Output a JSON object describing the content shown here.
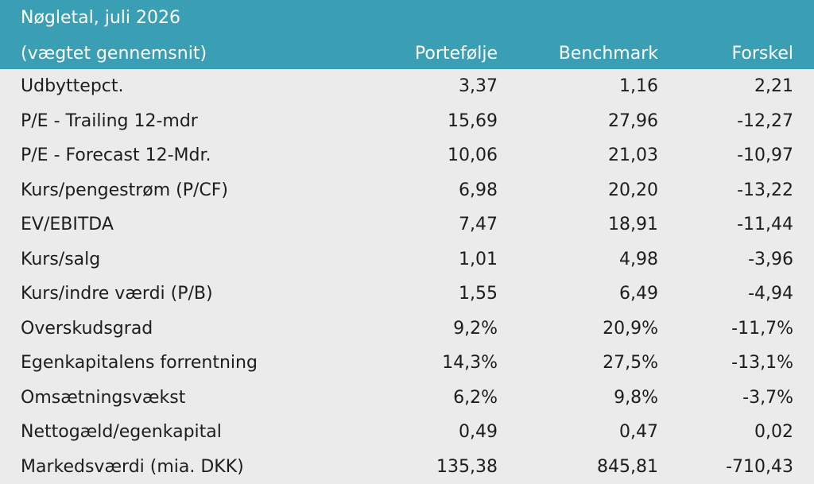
{
  "header": {
    "title": "Nøgletal, juli 2026",
    "subtitle": "(vægtet gennemsnit)",
    "columns": [
      "Portefølje",
      "Benchmark",
      "Forskel"
    ]
  },
  "rows": [
    {
      "label": "Udbyttepct.",
      "portefolje": "3,37",
      "benchmark": "1,16",
      "forskel": "2,21"
    },
    {
      "label": "P/E - Trailing 12-mdr",
      "portefolje": "15,69",
      "benchmark": "27,96",
      "forskel": "-12,27"
    },
    {
      "label": "P/E - Forecast 12-Mdr.",
      "portefolje": "10,06",
      "benchmark": "21,03",
      "forskel": "-10,97"
    },
    {
      "label": "Kurs/pengestrøm (P/CF)",
      "portefolje": "6,98",
      "benchmark": "20,20",
      "forskel": "-13,22"
    },
    {
      "label": "EV/EBITDA",
      "portefolje": "7,47",
      "benchmark": "18,91",
      "forskel": "-11,44"
    },
    {
      "label": "Kurs/salg",
      "portefolje": "1,01",
      "benchmark": "4,98",
      "forskel": "-3,96"
    },
    {
      "label": "Kurs/indre værdi (P/B)",
      "portefolje": "1,55",
      "benchmark": "6,49",
      "forskel": "-4,94"
    },
    {
      "label": "Overskudsgrad",
      "portefolje": "9,2%",
      "benchmark": "20,9%",
      "forskel": "-11,7%"
    },
    {
      "label": "Egenkapitalens forrentning",
      "portefolje": "14,3%",
      "benchmark": "27,5%",
      "forskel": "-13,1%"
    },
    {
      "label": "Omsætningsvækst",
      "portefolje": "6,2%",
      "benchmark": "9,8%",
      "forskel": "-3,7%"
    },
    {
      "label": "Nettogæld/egenkapital",
      "portefolje": "0,49",
      "benchmark": "0,47",
      "forskel": "0,02"
    },
    {
      "label": "Markedsværdi (mia. DKK)",
      "portefolje": "135,38",
      "benchmark": "845,81",
      "forskel": "-710,43"
    }
  ]
}
